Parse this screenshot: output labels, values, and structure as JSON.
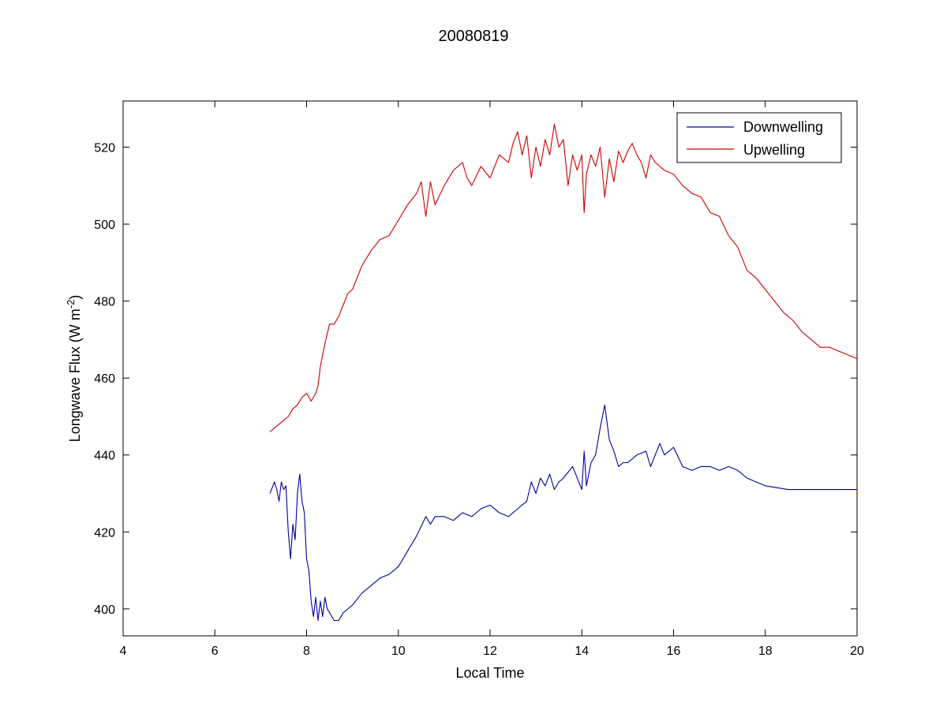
{
  "chart_data": {
    "type": "line",
    "title": "20080819",
    "xlabel": "Local Time",
    "ylabel": "Longwave Flux (W m",
    "ylabel_superscript": "-2",
    "ylabel_suffix": ")",
    "xlim": [
      4,
      20
    ],
    "ylim": [
      393,
      532
    ],
    "xticks": [
      4,
      6,
      8,
      10,
      12,
      14,
      16,
      18,
      20
    ],
    "yticks": [
      400,
      420,
      440,
      460,
      480,
      500,
      520
    ],
    "grid": false,
    "legend_position": "top-right",
    "series": [
      {
        "name": "Downwelling",
        "color": "#0000a0",
        "x": [
          7.2,
          7.3,
          7.35,
          7.4,
          7.45,
          7.5,
          7.55,
          7.6,
          7.65,
          7.7,
          7.75,
          7.8,
          7.85,
          7.9,
          7.95,
          8.0,
          8.05,
          8.1,
          8.15,
          8.2,
          8.25,
          8.3,
          8.35,
          8.4,
          8.45,
          8.5,
          8.55,
          8.6,
          8.7,
          8.8,
          9.0,
          9.2,
          9.4,
          9.6,
          9.8,
          10.0,
          10.2,
          10.4,
          10.6,
          10.7,
          10.8,
          11.0,
          11.2,
          11.4,
          11.6,
          11.8,
          12.0,
          12.2,
          12.4,
          12.6,
          12.8,
          12.9,
          13.0,
          13.1,
          13.2,
          13.3,
          13.4,
          13.5,
          13.6,
          13.8,
          14.0,
          14.05,
          14.1,
          14.2,
          14.3,
          14.4,
          14.5,
          14.6,
          14.7,
          14.8,
          14.9,
          15.0,
          15.2,
          15.4,
          15.5,
          15.6,
          15.7,
          15.8,
          15.9,
          16.0,
          16.2,
          16.4,
          16.6,
          16.8,
          17.0,
          17.2,
          17.4,
          17.6,
          17.8,
          18.0,
          18.5,
          19.0,
          19.5,
          20.0
        ],
        "values": [
          430,
          433,
          431,
          428,
          433,
          431,
          432,
          420,
          413,
          422,
          418,
          430,
          435,
          428,
          425,
          413,
          410,
          402,
          398,
          403,
          397,
          402,
          398,
          403,
          400,
          399,
          398,
          397,
          397,
          399,
          401,
          404,
          406,
          408,
          409,
          411,
          415,
          419,
          424,
          422,
          424,
          424,
          423,
          425,
          424,
          426,
          427,
          425,
          424,
          426,
          428,
          433,
          430,
          434,
          432,
          435,
          431,
          433,
          434,
          437,
          431,
          441,
          432,
          438,
          440,
          447,
          453,
          444,
          441,
          437,
          438,
          438,
          440,
          441,
          437,
          440,
          443,
          440,
          441,
          442,
          437,
          436,
          437,
          437,
          436,
          437,
          436,
          434,
          433,
          432,
          431,
          431,
          431,
          431
        ]
      },
      {
        "name": "Upwelling",
        "color": "#cc0000",
        "x": [
          7.2,
          7.3,
          7.4,
          7.5,
          7.6,
          7.7,
          7.8,
          7.9,
          8.0,
          8.1,
          8.2,
          8.25,
          8.3,
          8.4,
          8.5,
          8.6,
          8.7,
          8.8,
          8.9,
          9.0,
          9.2,
          9.4,
          9.6,
          9.8,
          10.0,
          10.2,
          10.4,
          10.5,
          10.6,
          10.7,
          10.8,
          11.0,
          11.2,
          11.4,
          11.5,
          11.6,
          11.8,
          12.0,
          12.2,
          12.4,
          12.5,
          12.6,
          12.7,
          12.8,
          12.9,
          13.0,
          13.1,
          13.2,
          13.3,
          13.4,
          13.5,
          13.6,
          13.7,
          13.8,
          13.9,
          14.0,
          14.05,
          14.1,
          14.2,
          14.3,
          14.4,
          14.5,
          14.6,
          14.7,
          14.8,
          14.9,
          15.0,
          15.1,
          15.2,
          15.3,
          15.4,
          15.5,
          15.6,
          15.8,
          16.0,
          16.2,
          16.4,
          16.6,
          16.8,
          17.0,
          17.2,
          17.4,
          17.6,
          17.8,
          18.0,
          18.2,
          18.4,
          18.6,
          18.8,
          19.0,
          19.2,
          19.4,
          19.6,
          19.8,
          20.0
        ],
        "values": [
          446,
          447,
          448,
          449,
          450,
          452,
          453,
          455,
          456,
          454,
          456,
          458,
          463,
          469,
          474,
          474,
          476,
          479,
          482,
          483,
          489,
          493,
          496,
          497,
          501,
          505,
          508,
          511,
          502,
          511,
          505,
          510,
          514,
          516,
          512,
          510,
          515,
          512,
          518,
          516,
          521,
          524,
          518,
          523,
          512,
          520,
          515,
          522,
          518,
          526,
          520,
          522,
          510,
          518,
          514,
          518,
          503,
          513,
          518,
          515,
          520,
          507,
          517,
          511,
          519,
          516,
          519,
          521,
          518,
          516,
          512,
          518,
          516,
          514,
          513,
          510,
          508,
          507,
          503,
          502,
          497,
          494,
          488,
          486,
          483,
          480,
          477,
          475,
          472,
          470,
          468,
          468,
          467,
          466,
          465
        ]
      }
    ]
  }
}
